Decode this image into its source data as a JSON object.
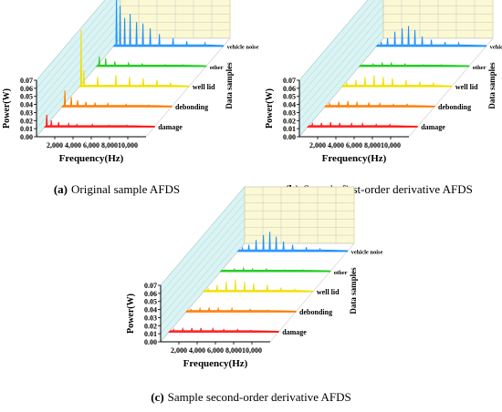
{
  "panels": [
    {
      "id": "a",
      "caption_letter": "(a)",
      "caption_text": "Original sample AFDS",
      "chart_data": {
        "type": "area",
        "projection": "3d-waterfall",
        "ylabel": "Power(W)",
        "xlabel": "Frequency(Hz)",
        "zlabel": "Data samples",
        "xlim": [
          0,
          12000
        ],
        "ylim": [
          0,
          0.07
        ],
        "xticks": [
          "2,000",
          "4,000",
          "6,000",
          "8,000",
          "10,000"
        ],
        "xtick_values": [
          2000,
          4000,
          6000,
          8000,
          10000
        ],
        "yticks": [
          "0.00",
          "0.01",
          "0.02",
          "0.03",
          "0.04",
          "0.05",
          "0.06",
          "0.07"
        ],
        "ytick_values": [
          0,
          0.01,
          0.02,
          0.03,
          0.04,
          0.05,
          0.06,
          0.07
        ],
        "series": [
          {
            "name": "damage",
            "color": "#ff1a1a",
            "peaks": [
              [
                200,
                0.015
              ],
              [
                700,
                0.008
              ],
              [
                1500,
                0.006
              ],
              [
                2600,
                0.004
              ],
              [
                3500,
                0.003
              ],
              [
                5200,
                0.003
              ],
              [
                7000,
                0.002
              ],
              [
                9000,
                0.002
              ]
            ]
          },
          {
            "name": "debonding",
            "color": "#ff7a00",
            "peaks": [
              [
                300,
                0.02
              ],
              [
                1000,
                0.012
              ],
              [
                1700,
                0.008
              ],
              [
                2600,
                0.006
              ],
              [
                3600,
                0.005
              ],
              [
                5000,
                0.004
              ],
              [
                7000,
                0.003
              ],
              [
                9500,
                0.002
              ]
            ]
          },
          {
            "name": "well lid",
            "color": "#f0e000",
            "peaks": [
              [
                200,
                0.07
              ],
              [
                500,
                0.02
              ],
              [
                2000,
                0.012
              ],
              [
                4000,
                0.014
              ],
              [
                5500,
                0.012
              ],
              [
                7000,
                0.01
              ],
              [
                8500,
                0.008
              ],
              [
                10000,
                0.005
              ]
            ]
          },
          {
            "name": "other",
            "color": "#22cc22",
            "peaks": [
              [
                300,
                0.012
              ],
              [
                1000,
                0.01
              ],
              [
                2000,
                0.006
              ],
              [
                3500,
                0.004
              ],
              [
                5000,
                0.003
              ],
              [
                7500,
                0.002
              ],
              [
                9500,
                0.002
              ]
            ]
          },
          {
            "name": "vehicle noise",
            "color": "#1e90ff",
            "peaks": [
              [
                300,
                0.06
              ],
              [
                700,
                0.05
              ],
              [
                1200,
                0.035
              ],
              [
                1800,
                0.04
              ],
              [
                2500,
                0.03
              ],
              [
                3200,
                0.028
              ],
              [
                4000,
                0.022
              ],
              [
                5000,
                0.015
              ],
              [
                6500,
                0.01
              ],
              [
                8000,
                0.006
              ],
              [
                10000,
                0.004
              ]
            ]
          }
        ]
      }
    },
    {
      "id": "b",
      "caption_letter": "(b)",
      "caption_text": "Sample first-order derivative AFDS",
      "chart_data": {
        "type": "area",
        "projection": "3d-waterfall",
        "ylabel": "Power(W)",
        "xlabel": "Frequency(Hz)",
        "zlabel": "Data samples",
        "xlim": [
          0,
          12000
        ],
        "ylim": [
          0,
          0.07
        ],
        "xticks": [
          "2,000",
          "4,000",
          "6,000",
          "8,000",
          "10,000"
        ],
        "xtick_values": [
          2000,
          4000,
          6000,
          8000,
          10000
        ],
        "yticks": [
          "0.00",
          "0.01",
          "0.02",
          "0.03",
          "0.04",
          "0.05",
          "0.06",
          "0.07"
        ],
        "ytick_values": [
          0,
          0.01,
          0.02,
          0.03,
          0.04,
          0.05,
          0.06,
          0.07
        ],
        "series": [
          {
            "name": "damage",
            "color": "#ff1a1a",
            "peaks": [
              [
                500,
                0.004
              ],
              [
                1500,
                0.005
              ],
              [
                2500,
                0.006
              ],
              [
                3500,
                0.005
              ],
              [
                4800,
                0.004
              ],
              [
                6000,
                0.004
              ],
              [
                7500,
                0.003
              ],
              [
                9000,
                0.003
              ]
            ]
          },
          {
            "name": "debonding",
            "color": "#ff7a00",
            "peaks": [
              [
                500,
                0.004
              ],
              [
                1500,
                0.006
              ],
              [
                2500,
                0.007
              ],
              [
                3500,
                0.006
              ],
              [
                4800,
                0.005
              ],
              [
                6000,
                0.004
              ],
              [
                7500,
                0.003
              ],
              [
                9000,
                0.003
              ]
            ]
          },
          {
            "name": "well lid",
            "color": "#f0e000",
            "peaks": [
              [
                500,
                0.005
              ],
              [
                1500,
                0.008
              ],
              [
                2500,
                0.012
              ],
              [
                3500,
                0.014
              ],
              [
                4500,
                0.012
              ],
              [
                5500,
                0.01
              ],
              [
                7000,
                0.008
              ],
              [
                8500,
                0.006
              ],
              [
                10000,
                0.004
              ]
            ]
          },
          {
            "name": "other",
            "color": "#22cc22",
            "peaks": [
              [
                500,
                0.002
              ],
              [
                1500,
                0.003
              ],
              [
                2500,
                0.004
              ],
              [
                3500,
                0.004
              ],
              [
                5000,
                0.003
              ],
              [
                7000,
                0.002
              ],
              [
                9000,
                0.002
              ]
            ]
          },
          {
            "name": "vehicle noise",
            "color": "#1e90ff",
            "peaks": [
              [
                500,
                0.005
              ],
              [
                1200,
                0.01
              ],
              [
                2000,
                0.018
              ],
              [
                2800,
                0.022
              ],
              [
                3500,
                0.025
              ],
              [
                4200,
                0.02
              ],
              [
                5000,
                0.012
              ],
              [
                6000,
                0.008
              ],
              [
                7500,
                0.005
              ],
              [
                9000,
                0.004
              ]
            ]
          }
        ]
      }
    },
    {
      "id": "c",
      "caption_letter": "(c)",
      "caption_text": "Sample second-order derivative AFDS",
      "chart_data": {
        "type": "area",
        "projection": "3d-waterfall",
        "ylabel": "Power(W)",
        "xlabel": "Frequency(Hz)",
        "zlabel": "Data samples",
        "xlim": [
          0,
          12000
        ],
        "ylim": [
          0,
          0.07
        ],
        "xticks": [
          "2,000",
          "4,000",
          "6,000",
          "8,000",
          "10,000"
        ],
        "xtick_values": [
          2000,
          4000,
          6000,
          8000,
          10000
        ],
        "yticks": [
          "0.00",
          "0.01",
          "0.02",
          "0.03",
          "0.04",
          "0.05",
          "0.06",
          "0.07"
        ],
        "ytick_values": [
          0,
          0.01,
          0.02,
          0.03,
          0.04,
          0.05,
          0.06,
          0.07
        ],
        "series": [
          {
            "name": "damage",
            "color": "#ff1a1a",
            "peaks": [
              [
                500,
                0.003
              ],
              [
                1500,
                0.004
              ],
              [
                2500,
                0.005
              ],
              [
                3500,
                0.005
              ],
              [
                4800,
                0.004
              ],
              [
                6000,
                0.003
              ],
              [
                7500,
                0.003
              ],
              [
                9000,
                0.002
              ]
            ]
          },
          {
            "name": "debonding",
            "color": "#ff7a00",
            "peaks": [
              [
                500,
                0.003
              ],
              [
                1500,
                0.004
              ],
              [
                2500,
                0.005
              ],
              [
                3500,
                0.004
              ],
              [
                5000,
                0.004
              ],
              [
                7000,
                0.003
              ],
              [
                9000,
                0.002
              ]
            ]
          },
          {
            "name": "well lid",
            "color": "#f0e000",
            "peaks": [
              [
                500,
                0.004
              ],
              [
                1500,
                0.008
              ],
              [
                2500,
                0.012
              ],
              [
                3500,
                0.015
              ],
              [
                4500,
                0.012
              ],
              [
                5500,
                0.01
              ],
              [
                7000,
                0.008
              ],
              [
                8500,
                0.005
              ],
              [
                10000,
                0.003
              ]
            ]
          },
          {
            "name": "other",
            "color": "#22cc22",
            "peaks": [
              [
                500,
                0.002
              ],
              [
                1500,
                0.003
              ],
              [
                2500,
                0.004
              ],
              [
                3500,
                0.003
              ],
              [
                5000,
                0.003
              ],
              [
                7000,
                0.002
              ],
              [
                9000,
                0.002
              ]
            ]
          },
          {
            "name": "vehicle noise",
            "color": "#1e90ff",
            "peaks": [
              [
                500,
                0.004
              ],
              [
                1200,
                0.008
              ],
              [
                2000,
                0.014
              ],
              [
                2800,
                0.02
              ],
              [
                3500,
                0.024
              ],
              [
                4200,
                0.018
              ],
              [
                5000,
                0.012
              ],
              [
                6000,
                0.008
              ],
              [
                7500,
                0.005
              ],
              [
                9000,
                0.003
              ]
            ]
          }
        ]
      }
    }
  ],
  "colors": {
    "back_wall": "#fbf8d4",
    "left_wall": "#d8f4f4",
    "floor": "#ffffff",
    "grid": "#bbbbbb"
  }
}
